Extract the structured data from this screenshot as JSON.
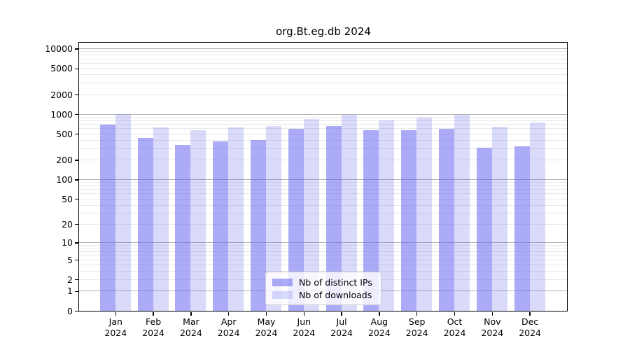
{
  "title": "org.Bt.eg.db 2024",
  "colors": {
    "bar_ips": "rgba(102,102,240,0.55)",
    "bar_downloads": "rgba(102,102,240,0.24)",
    "grid_major": "#b3b3b3",
    "grid_minor": "#e8e8e8",
    "spine": "#000000"
  },
  "legend": {
    "items": [
      {
        "label": "Nb of distinct IPs",
        "series_key": "ips"
      },
      {
        "label": "Nb of downloads",
        "series_key": "downloads"
      }
    ]
  },
  "axis": {
    "ytick_values": [
      0,
      1,
      2,
      5,
      10,
      20,
      50,
      100,
      200,
      500,
      1000,
      2000,
      5000,
      10000
    ],
    "grid_major_values": [
      1,
      10,
      100,
      1000,
      10000
    ],
    "year_label": "2024"
  },
  "chart_data": {
    "type": "bar",
    "title": "org.Bt.eg.db 2024",
    "categories": [
      "Jan",
      "Feb",
      "Mar",
      "Apr",
      "May",
      "Jun",
      "Jul",
      "Aug",
      "Sep",
      "Oct",
      "Nov",
      "Dec"
    ],
    "category_year": "2024",
    "series": [
      {
        "name": "Nb of distinct IPs",
        "values": [
          690,
          435,
          340,
          385,
          400,
          605,
          665,
          565,
          575,
          600,
          310,
          320
        ]
      },
      {
        "name": "Nb of downloads",
        "values": [
          1005,
          630,
          565,
          630,
          655,
          850,
          990,
          810,
          885,
          980,
          640,
          740
        ]
      }
    ],
    "yscale": "log10(1+y)",
    "ylim": [
      0,
      12000
    ],
    "yticks": [
      0,
      1,
      2,
      5,
      10,
      20,
      50,
      100,
      200,
      500,
      1000,
      2000,
      5000,
      10000
    ],
    "grid": true,
    "legend_position": "lower center"
  }
}
